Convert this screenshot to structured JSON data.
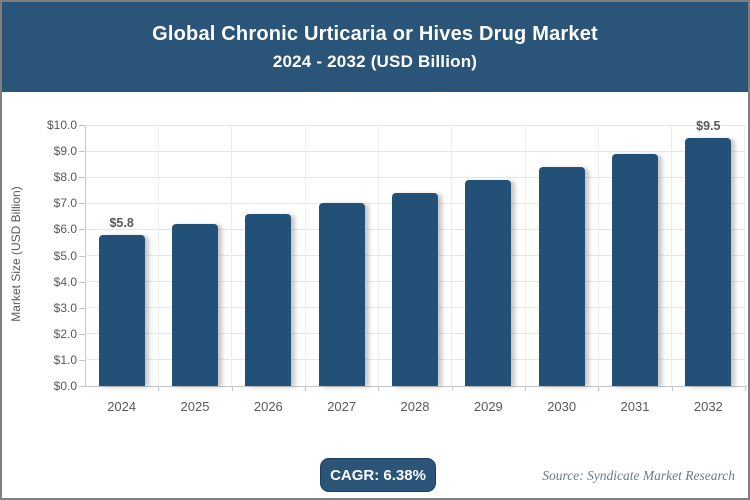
{
  "header": {
    "title_line1": "Global Chronic Urticaria or Hives Drug Market",
    "title_line2": "2024 - 2032 (USD Billion)"
  },
  "chart_data": {
    "type": "bar",
    "title": "Global Chronic Urticaria or Hives Drug Market 2024 - 2032 (USD Billion)",
    "categories": [
      "2024",
      "2025",
      "2026",
      "2027",
      "2028",
      "2029",
      "2030",
      "2031",
      "2032"
    ],
    "values": [
      5.8,
      6.2,
      6.6,
      7.0,
      7.4,
      7.9,
      8.4,
      8.9,
      9.5
    ],
    "labeled_points": [
      {
        "index": 0,
        "label": "$5.8"
      },
      {
        "index": 8,
        "label": "$9.5"
      }
    ],
    "xlabel": "",
    "ylabel": "Market Size (USD Billion)",
    "ylim": [
      0,
      10
    ],
    "ytick_step": 1,
    "ytick_prefix": "$",
    "ytick_decimals": 1,
    "grid": true,
    "legend": "none",
    "bar_color": "#235077"
  },
  "footer": {
    "cagr_label": "CAGR: 6.38%",
    "source": "Source: Syndicate Market Research"
  },
  "colors": {
    "header_bg": "#2A5578",
    "bar": "#235077",
    "badge_bg": "#2A5578",
    "axis_text": "#595959",
    "source_text": "#6a7b87"
  }
}
